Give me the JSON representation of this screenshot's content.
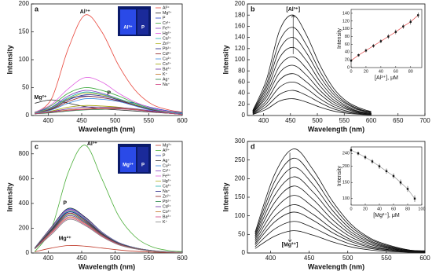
{
  "chart_data": [
    {
      "type": "line",
      "panel_label": "a",
      "xlabel": "Wavelength (nm)",
      "ylabel": "Intensity",
      "x": [
        380,
        405,
        430,
        455,
        480,
        505,
        530,
        555,
        580,
        600
      ],
      "xlim": [
        375,
        600
      ],
      "xticks": [
        400,
        450,
        500,
        550,
        600
      ],
      "ylim": [
        0,
        200
      ],
      "yticks": [
        0,
        50,
        100,
        150,
        200
      ],
      "legend": "upper right",
      "annotations": [
        "Al³⁺",
        "Mg²⁺",
        "P"
      ],
      "photo_labels": [
        "Al³⁺",
        "P"
      ],
      "series": [
        {
          "name": "Al³⁺",
          "color": "#e8473c",
          "values": [
            5,
            30,
            120,
            180,
            150,
            90,
            45,
            20,
            10,
            6
          ]
        },
        {
          "name": "Mg²⁺",
          "color": "#222222",
          "values": [
            22,
            28,
            22,
            16,
            12,
            10,
            8,
            6,
            4,
            3
          ]
        },
        {
          "name": "P",
          "color": "#1f3fbf",
          "values": [
            6,
            15,
            30,
            35,
            32,
            27,
            22,
            14,
            8,
            5
          ]
        },
        {
          "name": "Cr³⁺",
          "color": "#3aa83a",
          "values": [
            6,
            18,
            40,
            50,
            45,
            35,
            22,
            12,
            7,
            4
          ]
        },
        {
          "name": "Fe³⁺",
          "color": "#7f3fbf",
          "values": [
            5,
            15,
            35,
            45,
            40,
            30,
            20,
            11,
            6,
            4
          ]
        },
        {
          "name": "Hg²⁺",
          "color": "#e060e0",
          "values": [
            6,
            20,
            48,
            68,
            60,
            40,
            24,
            13,
            7,
            4
          ]
        },
        {
          "name": "Ca²⁺",
          "color": "#20b0b0",
          "values": [
            5,
            14,
            32,
            42,
            38,
            30,
            20,
            11,
            6,
            4
          ]
        },
        {
          "name": "Zn²⁺",
          "color": "#b0b020",
          "values": [
            5,
            13,
            30,
            40,
            37,
            29,
            19,
            10,
            6,
            3
          ]
        },
        {
          "name": "Pb²⁺",
          "color": "#1a1a80",
          "values": [
            4,
            12,
            28,
            37,
            35,
            28,
            18,
            10,
            5,
            3
          ]
        },
        {
          "name": "Cd²⁺",
          "color": "#8a1a1a",
          "values": [
            4,
            11,
            25,
            34,
            32,
            26,
            18,
            10,
            5,
            3
          ]
        },
        {
          "name": "Cu²⁺",
          "color": "#3a8ae0",
          "values": [
            4,
            10,
            22,
            30,
            29,
            25,
            17,
            9,
            5,
            3
          ]
        },
        {
          "name": "Co²⁺",
          "color": "#a0a000",
          "values": [
            3,
            8,
            15,
            18,
            17,
            15,
            11,
            7,
            4,
            2
          ]
        },
        {
          "name": "Ba²⁺",
          "color": "#6a2aa0",
          "values": [
            3,
            7,
            12,
            15,
            15,
            14,
            12,
            8,
            4,
            2
          ]
        },
        {
          "name": "K⁺",
          "color": "#c07020",
          "values": [
            3,
            6,
            10,
            12,
            13,
            13,
            11,
            7,
            4,
            2
          ]
        },
        {
          "name": "Ag⁺",
          "color": "#208040",
          "values": [
            3,
            5,
            8,
            10,
            11,
            12,
            10,
            7,
            4,
            2
          ]
        },
        {
          "name": "Na⁺",
          "color": "#d04080",
          "values": [
            3,
            6,
            9,
            11,
            12,
            12,
            10,
            7,
            4,
            2
          ]
        }
      ]
    },
    {
      "type": "line",
      "panel_label": "b",
      "xlabel": "Wavelength (nm)",
      "ylabel": "Intensity",
      "x": [
        380,
        405,
        430,
        455,
        480,
        505,
        530,
        555,
        580,
        600
      ],
      "xlim": [
        370,
        700
      ],
      "xticks": [
        400,
        450,
        500,
        550,
        600,
        650,
        700
      ],
      "ylim": [
        0,
        200
      ],
      "yticks": [
        0,
        20,
        40,
        60,
        80,
        100,
        120,
        140,
        160,
        180,
        200
      ],
      "annotations": [
        "[Al³⁺]"
      ],
      "series": [
        {
          "color": "#111111",
          "values": [
            9,
            63,
            153,
            180,
            144,
            90,
            49,
            25,
            13,
            7
          ]
        },
        {
          "color": "#111111",
          "values": [
            8,
            55,
            134,
            158,
            126,
            79,
            43,
            22,
            11,
            6
          ]
        },
        {
          "color": "#111111",
          "values": [
            7,
            49,
            119,
            140,
            112,
            70,
            38,
            20,
            10,
            6
          ]
        },
        {
          "color": "#111111",
          "values": [
            6,
            43,
            104,
            122,
            98,
            61,
            33,
            17,
            9,
            5
          ]
        },
        {
          "color": "#111111",
          "values": [
            5,
            37,
            89,
            105,
            84,
            53,
            28,
            15,
            7,
            4
          ]
        },
        {
          "color": "#111111",
          "values": [
            5,
            32,
            77,
            90,
            72,
            45,
            24,
            13,
            6,
            4
          ]
        },
        {
          "color": "#111111",
          "values": [
            4,
            26,
            64,
            75,
            60,
            38,
            20,
            11,
            5,
            3
          ]
        },
        {
          "color": "#111111",
          "values": [
            3,
            21,
            51,
            60,
            48,
            30,
            16,
            8,
            4,
            2
          ]
        },
        {
          "color": "#111111",
          "values": [
            2,
            16,
            38,
            45,
            36,
            23,
            12,
            6,
            3,
            2
          ]
        },
        {
          "color": "#111111",
          "values": [
            2,
            11,
            26,
            30,
            24,
            15,
            8,
            4,
            2,
            1
          ]
        }
      ],
      "inset": {
        "type": "scatter",
        "xlabel": "[Al³⁺], μM",
        "ylabel": "Intensity",
        "color": "#111111",
        "line_color": "#e03030",
        "x": [
          0,
          10,
          20,
          30,
          40,
          50,
          60,
          70,
          80,
          90
        ],
        "values": [
          18,
          32,
          44,
          56,
          68,
          80,
          92,
          106,
          118,
          135
        ],
        "errors": [
          4,
          4,
          5,
          5,
          5,
          6,
          6,
          6,
          7,
          7
        ],
        "xlim": [
          0,
          95
        ],
        "xticks": [
          0,
          20,
          40,
          60,
          80
        ],
        "ylim": [
          0,
          150
        ],
        "yticks": [
          0,
          20,
          40,
          60,
          80,
          100,
          120,
          140
        ]
      }
    },
    {
      "type": "line",
      "panel_label": "c",
      "xlabel": "Wavelength (nm)",
      "ylabel": "Intensity",
      "x": [
        380,
        405,
        430,
        455,
        480,
        505,
        530,
        555,
        580,
        600
      ],
      "xlim": [
        375,
        600
      ],
      "xticks": [
        400,
        450,
        500,
        550,
        600
      ],
      "ylim": [
        0,
        900
      ],
      "yticks": [
        0,
        200,
        400,
        600,
        800
      ],
      "legend": "upper right",
      "annotations": [
        "Al³⁺",
        "P",
        "Mg²⁺"
      ],
      "photo_labels": [
        "Mg²⁺",
        "P"
      ],
      "series": [
        {
          "name": "Mg²⁺",
          "color": "#c03a2a",
          "values": [
            10,
            40,
            60,
            55,
            40,
            25,
            14,
            7,
            4,
            2
          ]
        },
        {
          "name": "Al³⁺",
          "color": "#4caf3a",
          "values": [
            10,
            200,
            650,
            870,
            600,
            300,
            130,
            50,
            20,
            10
          ]
        },
        {
          "name": "P",
          "color": "#2040c0",
          "values": [
            40,
            200,
            330,
            270,
            160,
            80,
            40,
            18,
            8,
            5
          ]
        },
        {
          "name": "Ag⁺",
          "color": "#222222",
          "values": [
            42,
            210,
            360,
            290,
            170,
            85,
            42,
            20,
            9,
            5
          ]
        },
        {
          "name": "Cu²⁺",
          "color": "#3a8ae0",
          "values": [
            41,
            205,
            355,
            285,
            168,
            84,
            41,
            19,
            9,
            5
          ]
        },
        {
          "name": "Cr³⁺",
          "color": "#7f3fbf",
          "values": [
            41,
            205,
            350,
            282,
            166,
            83,
            41,
            19,
            9,
            5
          ]
        },
        {
          "name": "Fe³⁺",
          "color": "#e060e0",
          "values": [
            40,
            200,
            345,
            278,
            164,
            82,
            40,
            19,
            9,
            5
          ]
        },
        {
          "name": "Hg²⁺",
          "color": "#b0b020",
          "values": [
            40,
            198,
            340,
            275,
            162,
            81,
            40,
            18,
            8,
            5
          ]
        },
        {
          "name": "Ca²⁺",
          "color": "#20b0b0",
          "values": [
            39,
            195,
            338,
            272,
            160,
            80,
            40,
            18,
            8,
            5
          ]
        },
        {
          "name": "Na⁺",
          "color": "#1a1a80",
          "values": [
            38,
            190,
            330,
            268,
            158,
            79,
            39,
            18,
            8,
            5
          ]
        },
        {
          "name": "Zn²⁺",
          "color": "#8a1a1a",
          "values": [
            37,
            185,
            320,
            260,
            154,
            77,
            38,
            17,
            8,
            4
          ]
        },
        {
          "name": "Pb²⁺",
          "color": "#208040",
          "values": [
            36,
            180,
            310,
            252,
            150,
            75,
            37,
            17,
            8,
            4
          ]
        },
        {
          "name": "Cd²⁺",
          "color": "#6a2aa0",
          "values": [
            35,
            175,
            300,
            245,
            146,
            73,
            36,
            16,
            7,
            4
          ]
        },
        {
          "name": "Co²⁺",
          "color": "#c07020",
          "values": [
            34,
            168,
            290,
            238,
            142,
            71,
            35,
            16,
            7,
            4
          ]
        },
        {
          "name": "Ba²⁺",
          "color": "#d04080",
          "values": [
            33,
            160,
            280,
            230,
            138,
            69,
            34,
            15,
            7,
            4
          ]
        },
        {
          "name": "K⁺",
          "color": "#808080",
          "values": [
            32,
            150,
            270,
            222,
            132,
            66,
            33,
            15,
            7,
            4
          ]
        }
      ]
    },
    {
      "type": "line",
      "panel_label": "d",
      "xlabel": "Wavelength (nm)",
      "ylabel": "Intensity",
      "x": [
        380,
        405,
        430,
        455,
        480,
        505,
        530,
        555,
        580,
        600
      ],
      "xlim": [
        370,
        600
      ],
      "xticks": [
        400,
        450,
        500,
        550,
        600
      ],
      "ylim": [
        0,
        300
      ],
      "yticks": [
        0,
        50,
        100,
        150,
        200,
        250,
        300
      ],
      "annotations": [
        "[Mg²⁺]"
      ],
      "series": [
        {
          "color": "#111111",
          "values": [
            56,
            210,
            280,
            224,
            140,
            76,
            39,
            20,
            8,
            6
          ]
        },
        {
          "color": "#111111",
          "values": [
            51,
            191,
            255,
            204,
            128,
            69,
            36,
            18,
            8,
            5
          ]
        },
        {
          "color": "#111111",
          "values": [
            46,
            173,
            230,
            184,
            115,
            62,
            32,
            16,
            7,
            5
          ]
        },
        {
          "color": "#111111",
          "values": [
            41,
            154,
            205,
            164,
            103,
            55,
            29,
            14,
            6,
            4
          ]
        },
        {
          "color": "#111111",
          "values": [
            36,
            135,
            180,
            144,
            90,
            49,
            25,
            13,
            5,
            4
          ]
        },
        {
          "color": "#111111",
          "values": [
            31,
            116,
            155,
            124,
            78,
            42,
            22,
            11,
            5,
            3
          ]
        },
        {
          "color": "#111111",
          "values": [
            26,
            98,
            130,
            104,
            65,
            35,
            18,
            9,
            4,
            3
          ]
        },
        {
          "color": "#111111",
          "values": [
            22,
            83,
            110,
            88,
            55,
            30,
            15,
            8,
            3,
            2
          ]
        },
        {
          "color": "#111111",
          "values": [
            17,
            64,
            85,
            68,
            43,
            23,
            12,
            6,
            3,
            2
          ]
        },
        {
          "color": "#111111",
          "values": [
            12,
            45,
            60,
            48,
            30,
            16,
            8,
            4,
            2,
            1
          ]
        }
      ],
      "inset": {
        "type": "scatter",
        "xlabel": "[Mg²⁺], μM",
        "ylabel": "Intensity",
        "color": "#111111",
        "line_color": "#888888",
        "x": [
          0,
          10,
          20,
          30,
          40,
          50,
          60,
          70,
          80,
          90
        ],
        "values": [
          250,
          240,
          228,
          215,
          200,
          185,
          170,
          150,
          130,
          100
        ],
        "errors": [
          6,
          6,
          7,
          7,
          8,
          8,
          8,
          9,
          9,
          10
        ],
        "xlim": [
          0,
          100
        ],
        "xticks": [
          0,
          20,
          40,
          60,
          80,
          100
        ],
        "ylim": [
          80,
          260
        ],
        "yticks": [
          100,
          150,
          200,
          240
        ]
      }
    }
  ]
}
